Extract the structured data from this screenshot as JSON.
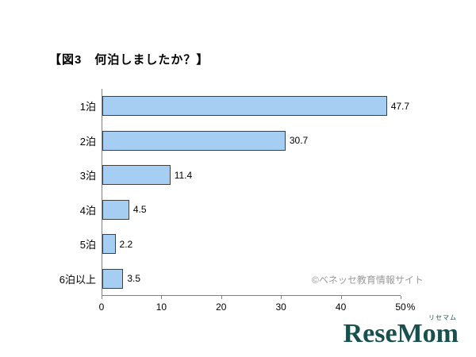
{
  "page": {
    "title": "【図3　何泊しましたか？】",
    "watermark": "©ベネッセ教育情報サイト",
    "logo": {
      "text": "ReseMom",
      "ruby": "リセマム"
    }
  },
  "chart_data": {
    "type": "bar",
    "orientation": "horizontal",
    "title": "【図3　何泊しましたか？】",
    "categories": [
      "1泊",
      "2泊",
      "3泊",
      "4泊",
      "5泊",
      "6泊以上"
    ],
    "values": [
      47.7,
      30.7,
      11.4,
      4.5,
      2.2,
      3.5
    ],
    "value_labels": [
      "47.7",
      "30.7",
      "11.4",
      "4.5",
      "2.2",
      "3.5"
    ],
    "xlim": [
      0,
      50
    ],
    "x_ticks": [
      0,
      10,
      20,
      30,
      40,
      50
    ],
    "x_unit": "%",
    "grid": false,
    "bar_color": "#a6cdf2",
    "bar_border_color": "#404040",
    "axis_color": "#7f7f7f"
  }
}
